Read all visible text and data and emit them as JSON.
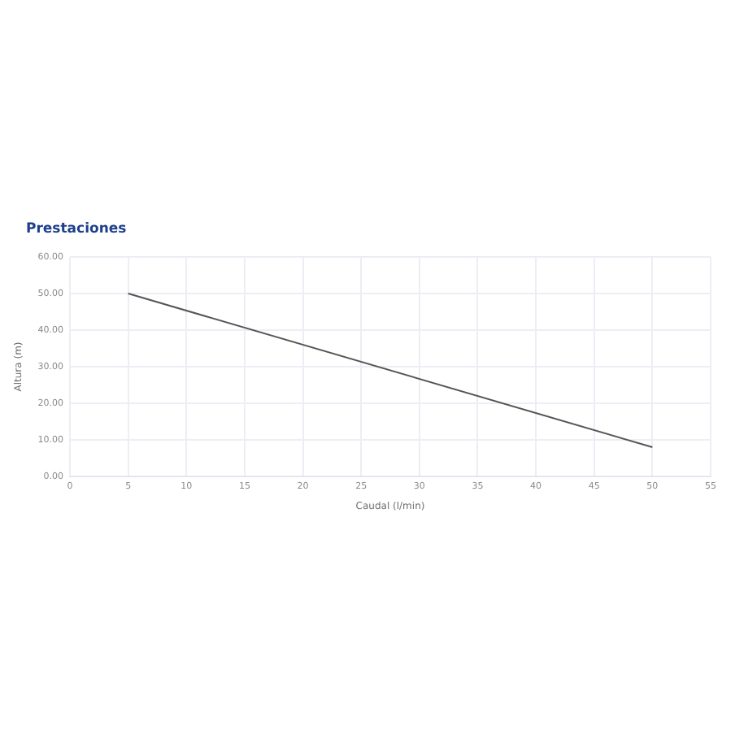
{
  "chart_data": {
    "type": "line",
    "title": "Prestaciones",
    "xlabel": "Caudal (l/min)",
    "ylabel": "Altura (m)",
    "x": [
      5,
      50
    ],
    "series": [
      {
        "color": "#555555",
        "values": [
          50,
          8
        ]
      }
    ],
    "xlim": [
      0,
      55
    ],
    "xticks": [
      0,
      5,
      10,
      15,
      20,
      25,
      30,
      35,
      40,
      45,
      50,
      55
    ],
    "ylim": [
      0,
      60
    ],
    "yticks": [
      {
        "value": 0,
        "label": "0.00"
      },
      {
        "value": 10,
        "label": "10.00"
      },
      {
        "value": 20,
        "label": "20.00"
      },
      {
        "value": 30,
        "label": "30.00"
      },
      {
        "value": 40,
        "label": "40.00"
      },
      {
        "value": 50,
        "label": "50.00"
      },
      {
        "value": 60,
        "label": "60.00"
      }
    ],
    "grid": true,
    "legend": false,
    "marker": "none"
  }
}
